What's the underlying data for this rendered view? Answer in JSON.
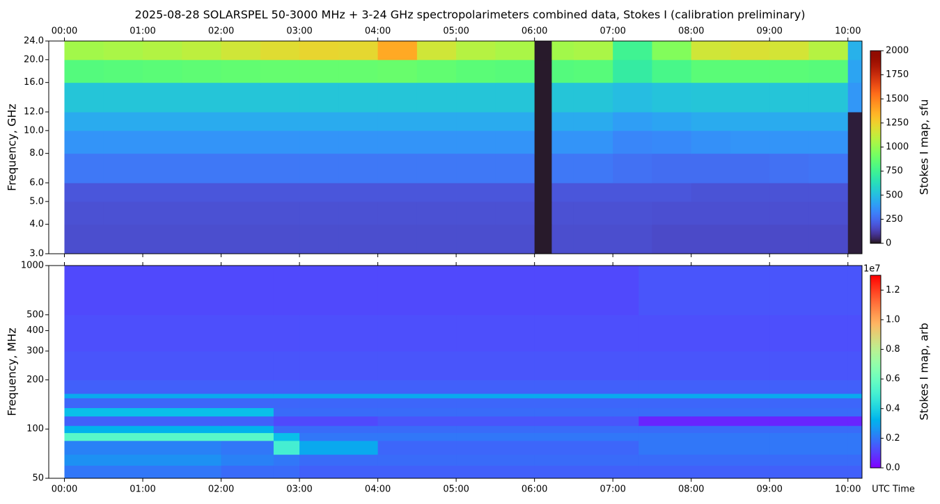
{
  "chart_data": [
    {
      "type": "heatmap",
      "title": "2025-08-28  SOLARSPEL  50-3000 MHz  +  3-24 GHz  spectropolarimeters combined data,  Stokes I  (calibration preliminary)",
      "ylabel": "Frequency, GHz",
      "xaxis_position": "top",
      "x": [
        0,
        0.5,
        1,
        1.5,
        2,
        2.5,
        3,
        3.5,
        4,
        4.5,
        5,
        5.5,
        6,
        6.22,
        6.5,
        7,
        7.5,
        8,
        8.5,
        9,
        9.5,
        10,
        10.18
      ],
      "y": [
        3,
        4,
        5,
        6,
        8,
        10,
        12,
        16,
        20,
        24
      ],
      "z": [
        [
          170,
          170,
          170,
          170,
          170,
          170,
          170,
          170,
          170,
          170,
          170,
          170,
          10,
          170,
          170,
          170,
          160,
          160,
          160,
          160,
          160,
          20
        ],
        [
          180,
          180,
          180,
          180,
          180,
          180,
          180,
          180,
          180,
          180,
          180,
          180,
          10,
          180,
          180,
          180,
          175,
          175,
          175,
          175,
          175,
          20
        ],
        [
          195,
          195,
          195,
          195,
          195,
          195,
          195,
          195,
          195,
          195,
          195,
          195,
          10,
          195,
          195,
          195,
          195,
          185,
          185,
          185,
          185,
          20
        ],
        [
          290,
          290,
          290,
          290,
          290,
          290,
          290,
          290,
          290,
          290,
          290,
          290,
          10,
          290,
          290,
          270,
          260,
          260,
          260,
          270,
          280,
          20
        ],
        [
          370,
          370,
          370,
          370,
          370,
          370,
          370,
          370,
          370,
          370,
          370,
          370,
          10,
          370,
          370,
          330,
          340,
          360,
          370,
          370,
          370,
          20
        ],
        [
          440,
          440,
          440,
          440,
          440,
          440,
          440,
          440,
          440,
          440,
          440,
          440,
          10,
          440,
          440,
          400,
          420,
          440,
          440,
          440,
          440,
          20
        ],
        [
          530,
          530,
          530,
          530,
          530,
          530,
          530,
          530,
          530,
          530,
          530,
          530,
          10,
          530,
          530,
          500,
          520,
          530,
          530,
          530,
          530,
          380
        ],
        [
          820,
          830,
          840,
          850,
          860,
          870,
          870,
          870,
          880,
          860,
          840,
          830,
          10,
          820,
          830,
          700,
          780,
          840,
          840,
          840,
          830,
          420
        ],
        [
          1030,
          1050,
          1070,
          1100,
          1150,
          1200,
          1230,
          1220,
          1380,
          1150,
          1080,
          1050,
          10,
          1030,
          1050,
          750,
          950,
          1150,
          1180,
          1160,
          1080,
          460
        ]
      ],
      "xlim": [
        -0.2,
        10.18
      ],
      "ylim": [
        3,
        24
      ],
      "yscale": "log",
      "xticks": [
        {
          "value": 0,
          "label": "00:00"
        },
        {
          "value": 1,
          "label": "01:00"
        },
        {
          "value": 2,
          "label": "02:00"
        },
        {
          "value": 3,
          "label": "03:00"
        },
        {
          "value": 4,
          "label": "04:00"
        },
        {
          "value": 5,
          "label": "05:00"
        },
        {
          "value": 6,
          "label": "06:00"
        },
        {
          "value": 7,
          "label": "07:00"
        },
        {
          "value": 8,
          "label": "08:00"
        },
        {
          "value": 9,
          "label": "09:00"
        },
        {
          "value": 10,
          "label": "10:00"
        }
      ],
      "yticks": [
        {
          "value": 3,
          "label": "3.0"
        },
        {
          "value": 4,
          "label": "4.0"
        },
        {
          "value": 5,
          "label": "5.0"
        },
        {
          "value": 6,
          "label": "6.0"
        },
        {
          "value": 8,
          "label": "8.0"
        },
        {
          "value": 10,
          "label": "10.0"
        },
        {
          "value": 12,
          "label": "12.0"
        },
        {
          "value": 16,
          "label": "16.0"
        },
        {
          "value": 20,
          "label": "20.0"
        },
        {
          "value": 24,
          "label": "24.0"
        }
      ],
      "colormap": "turbo",
      "clim": [
        0,
        2000
      ],
      "cticks": [
        0,
        250,
        500,
        750,
        1000,
        1250,
        1500,
        1750,
        2000
      ],
      "clabel": "Stokes I map, sfu"
    },
    {
      "type": "heatmap",
      "ylabel": "Frequency, MHz",
      "xlabel": "UTC Time",
      "xaxis_position": "bottom",
      "x": [
        0,
        1,
        2,
        2.67,
        3,
        4,
        5,
        6,
        7,
        7.33,
        8,
        9,
        10,
        10.18
      ],
      "y": [
        50,
        60,
        70,
        85,
        95,
        105,
        120,
        135,
        155,
        165,
        200,
        300,
        500,
        1000
      ],
      "z": [
        [
          0.2,
          0.2,
          0.18,
          0.18,
          0.16,
          0.16,
          0.16,
          0.16,
          0.16,
          0.16,
          0.16,
          0.16,
          0.16
        ],
        [
          0.25,
          0.25,
          0.22,
          0.2,
          0.18,
          0.18,
          0.18,
          0.18,
          0.18,
          0.18,
          0.18,
          0.18,
          0.18
        ],
        [
          0.22,
          0.22,
          0.2,
          0.5,
          0.3,
          0.17,
          0.17,
          0.17,
          0.17,
          0.2,
          0.2,
          0.2,
          0.2
        ],
        [
          0.55,
          0.55,
          0.55,
          0.35,
          0.2,
          0.2,
          0.2,
          0.2,
          0.2,
          0.2,
          0.2,
          0.2,
          0.2
        ],
        [
          0.32,
          0.32,
          0.32,
          0.18,
          0.18,
          0.18,
          0.18,
          0.18,
          0.18,
          0.18,
          0.18,
          0.18,
          0.18
        ],
        [
          0.16,
          0.16,
          0.16,
          0.12,
          0.12,
          0.14,
          0.14,
          0.14,
          0.14,
          0.06,
          0.06,
          0.06,
          0.06
        ],
        [
          0.35,
          0.35,
          0.35,
          0.18,
          0.18,
          0.18,
          0.18,
          0.18,
          0.18,
          0.18,
          0.18,
          0.18,
          0.18
        ],
        [
          0.17,
          0.17,
          0.17,
          0.17,
          0.17,
          0.17,
          0.17,
          0.17,
          0.17,
          0.17,
          0.17,
          0.17,
          0.17
        ],
        [
          0.3,
          0.3,
          0.3,
          0.3,
          0.3,
          0.3,
          0.3,
          0.3,
          0.3,
          0.3,
          0.3,
          0.3,
          0.3
        ],
        [
          0.16,
          0.16,
          0.16,
          0.16,
          0.16,
          0.16,
          0.16,
          0.16,
          0.16,
          0.16,
          0.16,
          0.16,
          0.16
        ],
        [
          0.14,
          0.14,
          0.14,
          0.14,
          0.14,
          0.14,
          0.14,
          0.14,
          0.14,
          0.14,
          0.14,
          0.14,
          0.14
        ],
        [
          0.13,
          0.13,
          0.13,
          0.13,
          0.13,
          0.13,
          0.13,
          0.13,
          0.13,
          0.13,
          0.13,
          0.13,
          0.13
        ],
        [
          0.12,
          0.12,
          0.12,
          0.12,
          0.12,
          0.12,
          0.12,
          0.12,
          0.12,
          0.14,
          0.14,
          0.14,
          0.14
        ]
      ],
      "xlim": [
        -0.2,
        10.18
      ],
      "ylim": [
        50,
        1000
      ],
      "yscale": "log",
      "xticks": [
        {
          "value": 0,
          "label": "00:00"
        },
        {
          "value": 1,
          "label": "01:00"
        },
        {
          "value": 2,
          "label": "02:00"
        },
        {
          "value": 3,
          "label": "03:00"
        },
        {
          "value": 4,
          "label": "04:00"
        },
        {
          "value": 5,
          "label": "05:00"
        },
        {
          "value": 6,
          "label": "06:00"
        },
        {
          "value": 7,
          "label": "07:00"
        },
        {
          "value": 8,
          "label": "08:00"
        },
        {
          "value": 9,
          "label": "09:00"
        },
        {
          "value": 10,
          "label": "10:00"
        }
      ],
      "yticks": [
        50,
        100,
        200,
        300,
        400,
        500,
        1000
      ],
      "colormap": "rainbow",
      "clim": [
        0,
        1.3
      ],
      "cticks": [
        {
          "value": 0,
          "label": "0.0"
        },
        0.2,
        0.4,
        0.6,
        0.8,
        {
          "value": 1,
          "label": "1.0"
        },
        1.2
      ],
      "coffset": "1e7",
      "clabel": "Stokes I map, arb"
    }
  ]
}
